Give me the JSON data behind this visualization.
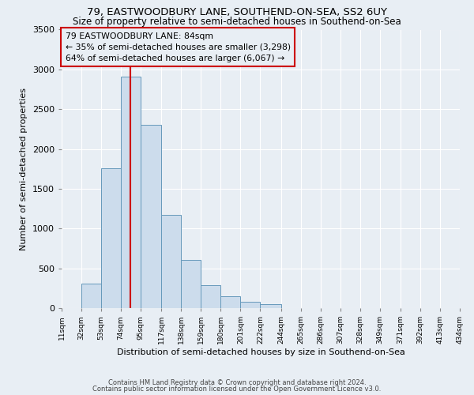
{
  "title1": "79, EASTWOODBURY LANE, SOUTHEND-ON-SEA, SS2 6UY",
  "title2": "Size of property relative to semi-detached houses in Southend-on-Sea",
  "xlabel": "Distribution of semi-detached houses by size in Southend-on-Sea",
  "ylabel": "Number of semi-detached properties",
  "bar_edges": [
    11,
    32,
    53,
    74,
    95,
    117,
    138,
    159,
    180,
    201,
    222,
    244,
    265,
    286,
    307,
    328,
    349,
    371,
    392,
    413,
    434
  ],
  "bar_heights": [
    0,
    310,
    1760,
    2910,
    2300,
    1170,
    610,
    290,
    150,
    75,
    50,
    0,
    0,
    0,
    0,
    0,
    0,
    0,
    0,
    0
  ],
  "bar_color": "#ccdcec",
  "bar_edge_color": "#6699bb",
  "property_line_x": 84,
  "property_line_color": "#cc0000",
  "annotation_title": "79 EASTWOODBURY LANE: 84sqm",
  "annotation_line1": "← 35% of semi-detached houses are smaller (3,298)",
  "annotation_line2": "64% of semi-detached houses are larger (6,067) →",
  "annotation_box_color": "#cc0000",
  "ylim": [
    0,
    3500
  ],
  "xlim": [
    11,
    434
  ],
  "yticks": [
    0,
    500,
    1000,
    1500,
    2000,
    2500,
    3000,
    3500
  ],
  "tick_labels": [
    "11sqm",
    "32sqm",
    "53sqm",
    "74sqm",
    "95sqm",
    "117sqm",
    "138sqm",
    "159sqm",
    "180sqm",
    "201sqm",
    "222sqm",
    "244sqm",
    "265sqm",
    "286sqm",
    "307sqm",
    "328sqm",
    "349sqm",
    "371sqm",
    "392sqm",
    "413sqm",
    "434sqm"
  ],
  "background_color": "#e8eef4",
  "footer1": "Contains HM Land Registry data © Crown copyright and database right 2024.",
  "footer2": "Contains public sector information licensed under the Open Government Licence v3.0."
}
